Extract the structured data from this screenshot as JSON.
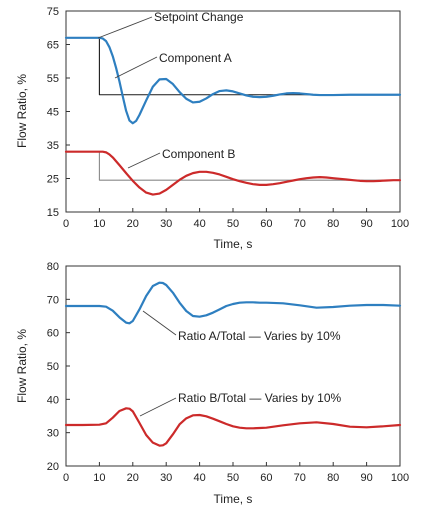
{
  "chart_data": [
    {
      "type": "line",
      "xlabel": "Time, s",
      "ylabel": "Flow Ratio, %",
      "xlim": [
        0,
        100
      ],
      "ylim": [
        15,
        75
      ],
      "xticks": [
        "0",
        "10",
        "20",
        "30",
        "40",
        "50",
        "60",
        "70",
        "80",
        "90",
        "100"
      ],
      "yticks": [
        "15",
        "25",
        "35",
        "45",
        "55",
        "65",
        "75"
      ],
      "grid": false,
      "annotations": [
        {
          "text": "Setpoint Change",
          "x": 10,
          "y": 67
        },
        {
          "text": "Component A",
          "x": 15,
          "y": 53
        },
        {
          "text": "Component B",
          "x": 18,
          "y": 30
        }
      ],
      "series": [
        {
          "role": "setpoint-a",
          "color": "#1a1a1a",
          "x": [
            0,
            10,
            10,
            100
          ],
          "y": [
            67,
            67,
            50,
            50
          ]
        },
        {
          "role": "setpoint-b",
          "color": "#888888",
          "x": [
            0,
            10,
            10,
            100
          ],
          "y": [
            33,
            33,
            24.5,
            24.5
          ]
        },
        {
          "role": "response-a",
          "color": "#2e7fc0",
          "x": [
            0,
            10,
            11,
            12,
            13,
            14,
            15,
            16,
            17,
            18,
            19,
            20,
            21,
            22,
            24,
            26,
            28,
            30,
            32,
            34,
            36,
            38,
            40,
            42,
            44,
            46,
            48,
            50,
            52,
            54,
            56,
            58,
            60,
            62,
            64,
            66,
            68,
            70,
            72,
            74,
            76,
            78,
            80,
            85,
            90,
            95,
            100
          ],
          "y": [
            67,
            67,
            66.8,
            66,
            64.2,
            61.5,
            58,
            54,
            49.5,
            45.2,
            42.3,
            41.5,
            42.2,
            44,
            48.3,
            52.4,
            54.6,
            54.7,
            53.2,
            50.8,
            48.8,
            47.7,
            47.9,
            48.9,
            50.2,
            51.1,
            51.3,
            51,
            50.4,
            49.8,
            49.4,
            49.3,
            49.4,
            49.7,
            50.1,
            50.4,
            50.5,
            50.4,
            50.2,
            50,
            49.9,
            49.9,
            49.9,
            50,
            50,
            50,
            50
          ]
        },
        {
          "role": "response-b",
          "color": "#cc2a2a",
          "x": [
            0,
            10,
            11,
            12,
            13,
            14,
            16,
            18,
            20,
            22,
            24,
            26,
            28,
            30,
            32,
            34,
            36,
            38,
            40,
            42,
            44,
            46,
            48,
            50,
            52,
            54,
            56,
            58,
            60,
            62,
            64,
            66,
            68,
            70,
            72,
            74,
            76,
            78,
            80,
            82,
            84,
            86,
            88,
            90,
            92,
            94,
            96,
            98,
            100
          ],
          "y": [
            33,
            33,
            33,
            32.8,
            32.2,
            31.3,
            29,
            26.6,
            24.3,
            22.3,
            20.8,
            20.2,
            20.5,
            21.6,
            23.1,
            24.6,
            25.8,
            26.6,
            27,
            27,
            26.7,
            26.2,
            25.5,
            24.8,
            24.2,
            23.7,
            23.3,
            23.1,
            23.1,
            23.3,
            23.6,
            24,
            24.4,
            24.8,
            25.1,
            25.3,
            25.4,
            25.3,
            25.1,
            24.9,
            24.7,
            24.5,
            24.3,
            24.2,
            24.2,
            24.3,
            24.4,
            24.5,
            24.5
          ]
        }
      ]
    },
    {
      "type": "line",
      "xlabel": "Time, s",
      "ylabel": "Flow Ratio, %",
      "xlim": [
        0,
        100
      ],
      "ylim": [
        20,
        80
      ],
      "xticks": [
        "0",
        "10",
        "20",
        "30",
        "40",
        "50",
        "60",
        "70",
        "80",
        "90",
        "100"
      ],
      "yticks": [
        "20",
        "30",
        "40",
        "50",
        "60",
        "70",
        "80"
      ],
      "grid": false,
      "annotations": [
        {
          "text": "Ratio A/Total — Varies by 10%",
          "x": 23,
          "y": 65
        },
        {
          "text": "Ratio B/Total — Varies by 10%",
          "x": 23,
          "y": 37
        }
      ],
      "series": [
        {
          "role": "ratio-a",
          "color": "#2e7fc0",
          "x": [
            0,
            5,
            10,
            12,
            14,
            16,
            18,
            19,
            20,
            22,
            24,
            26,
            28,
            29,
            30,
            32,
            34,
            36,
            38,
            40,
            42,
            44,
            46,
            48,
            50,
            52,
            54,
            56,
            58,
            60,
            65,
            70,
            75,
            80,
            85,
            90,
            95,
            100
          ],
          "y": [
            68,
            68,
            68,
            67.8,
            66.6,
            64.6,
            63,
            62.8,
            63.5,
            67,
            71,
            74,
            75,
            74.9,
            74.3,
            72,
            69,
            66.5,
            65,
            64.8,
            65.2,
            66,
            67,
            68,
            68.6,
            69,
            69.1,
            69.1,
            69,
            69,
            68.8,
            68.2,
            67.5,
            67.7,
            68.1,
            68.3,
            68.3,
            68.1
          ]
        },
        {
          "role": "ratio-b",
          "color": "#cc2a2a",
          "x": [
            0,
            5,
            10,
            12,
            14,
            16,
            18,
            19,
            20,
            22,
            24,
            26,
            28,
            29,
            30,
            32,
            34,
            36,
            38,
            40,
            42,
            44,
            46,
            48,
            50,
            52,
            54,
            56,
            58,
            60,
            65,
            70,
            75,
            80,
            85,
            90,
            95,
            100
          ],
          "y": [
            32.3,
            32.3,
            32.4,
            32.8,
            34.5,
            36.5,
            37.3,
            37.2,
            36.4,
            32.9,
            29.3,
            27,
            26.1,
            26.2,
            26.8,
            29.5,
            32.5,
            34.3,
            35.2,
            35.3,
            34.9,
            34.2,
            33.4,
            32.6,
            31.9,
            31.5,
            31.3,
            31.3,
            31.4,
            31.5,
            32.2,
            32.8,
            33.1,
            32.6,
            31.8,
            31.6,
            31.9,
            32.3
          ]
        }
      ]
    }
  ]
}
